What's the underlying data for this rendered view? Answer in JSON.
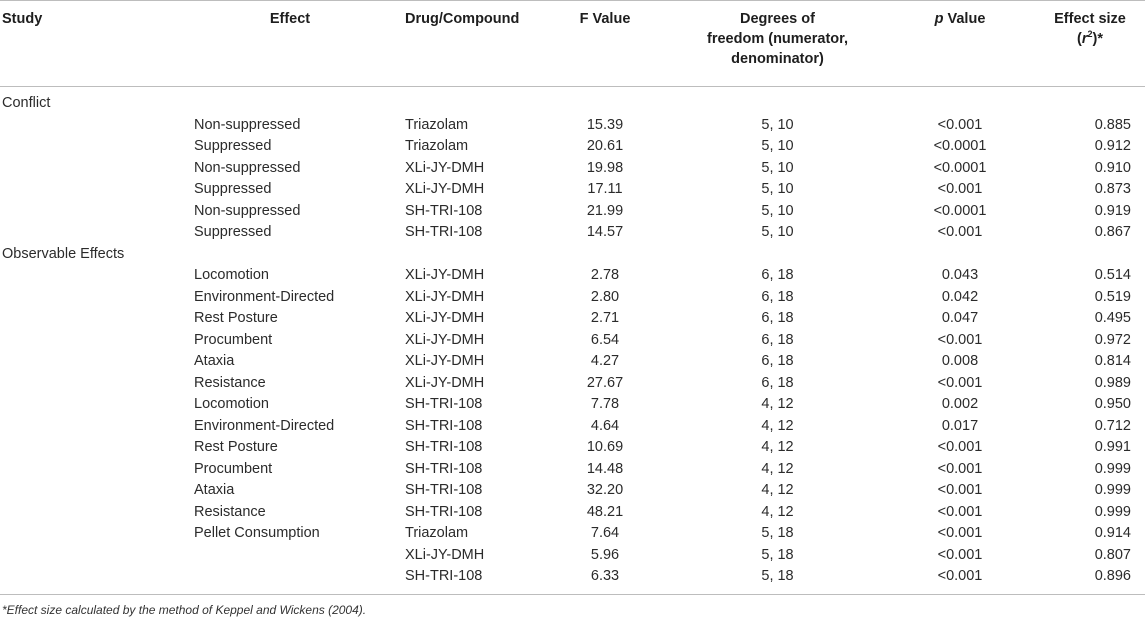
{
  "headers": {
    "study": "Study",
    "effect": "Effect",
    "drug": "Drug/Compound",
    "f_value": "F Value",
    "dof_line1": "Degrees of",
    "dof_line2": "freedom (numerator,",
    "dof_line3": "denominator)",
    "p_italic": "p",
    "p_rest": " Value",
    "es_line1": "Effect size",
    "es_open": "(",
    "es_r": "r",
    "es_sup": "2",
    "es_close": ")*"
  },
  "groups": [
    {
      "study": "Conflict",
      "rows": [
        {
          "effect": "Non-suppressed",
          "drug": "Triazolam",
          "f": "15.39",
          "df": "5, 10",
          "p": "<0.001",
          "es": "0.885"
        },
        {
          "effect": "Suppressed",
          "drug": "Triazolam",
          "f": "20.61",
          "df": "5, 10",
          "p": "<0.0001",
          "es": "0.912"
        },
        {
          "effect": "Non-suppressed",
          "drug": "XLi-JY-DMH",
          "f": "19.98",
          "df": "5, 10",
          "p": "<0.0001",
          "es": "0.910"
        },
        {
          "effect": "Suppressed",
          "drug": "XLi-JY-DMH",
          "f": "17.11",
          "df": "5, 10",
          "p": "<0.001",
          "es": "0.873"
        },
        {
          "effect": "Non-suppressed",
          "drug": "SH-TRI-108",
          "f": "21.99",
          "df": "5, 10",
          "p": "<0.0001",
          "es": "0.919"
        },
        {
          "effect": "Suppressed",
          "drug": "SH-TRI-108",
          "f": "14.57",
          "df": "5, 10",
          "p": "<0.001",
          "es": "0.867"
        }
      ]
    },
    {
      "study": "Observable Effects",
      "rows": [
        {
          "effect": "Locomotion",
          "drug": "XLi-JY-DMH",
          "f": "2.78",
          "df": "6, 18",
          "p": "0.043",
          "es": "0.514"
        },
        {
          "effect": "Environment-Directed",
          "drug": "XLi-JY-DMH",
          "f": "2.80",
          "df": "6, 18",
          "p": "0.042",
          "es": "0.519"
        },
        {
          "effect": "Rest Posture",
          "drug": "XLi-JY-DMH",
          "f": "2.71",
          "df": "6, 18",
          "p": "0.047",
          "es": "0.495"
        },
        {
          "effect": "Procumbent",
          "drug": "XLi-JY-DMH",
          "f": "6.54",
          "df": "6, 18",
          "p": "<0.001",
          "es": "0.972"
        },
        {
          "effect": "Ataxia",
          "drug": "XLi-JY-DMH",
          "f": "4.27",
          "df": "6, 18",
          "p": "0.008",
          "es": "0.814"
        },
        {
          "effect": "Resistance",
          "drug": "XLi-JY-DMH",
          "f": "27.67",
          "df": "6, 18",
          "p": "<0.001",
          "es": "0.989"
        },
        {
          "effect": "Locomotion",
          "drug": "SH-TRI-108",
          "f": "7.78",
          "df": "4, 12",
          "p": "0.002",
          "es": "0.950"
        },
        {
          "effect": "Environment-Directed",
          "drug": "SH-TRI-108",
          "f": "4.64",
          "df": "4, 12",
          "p": "0.017",
          "es": "0.712"
        },
        {
          "effect": "Rest Posture",
          "drug": "SH-TRI-108",
          "f": "10.69",
          "df": "4, 12",
          "p": "<0.001",
          "es": "0.991"
        },
        {
          "effect": "Procumbent",
          "drug": "SH-TRI-108",
          "f": "14.48",
          "df": "4, 12",
          "p": "<0.001",
          "es": "0.999"
        },
        {
          "effect": "Ataxia",
          "drug": "SH-TRI-108",
          "f": "32.20",
          "df": "4, 12",
          "p": "<0.001",
          "es": "0.999"
        },
        {
          "effect": "Resistance",
          "drug": "SH-TRI-108",
          "f": "48.21",
          "df": "4, 12",
          "p": "<0.001",
          "es": "0.999"
        },
        {
          "effect": "Pellet Consumption",
          "drug": "Triazolam",
          "f": "7.64",
          "df": "5, 18",
          "p": "<0.001",
          "es": "0.914"
        },
        {
          "effect": "",
          "drug": "XLi-JY-DMH",
          "f": "5.96",
          "df": "5, 18",
          "p": "<0.001",
          "es": "0.807"
        },
        {
          "effect": "",
          "drug": "SH-TRI-108",
          "f": "6.33",
          "df": "5, 18",
          "p": "<0.001",
          "es": "0.896"
        }
      ]
    }
  ],
  "footnote": "*Effect size calculated by the method of Keppel and Wickens (2004)."
}
